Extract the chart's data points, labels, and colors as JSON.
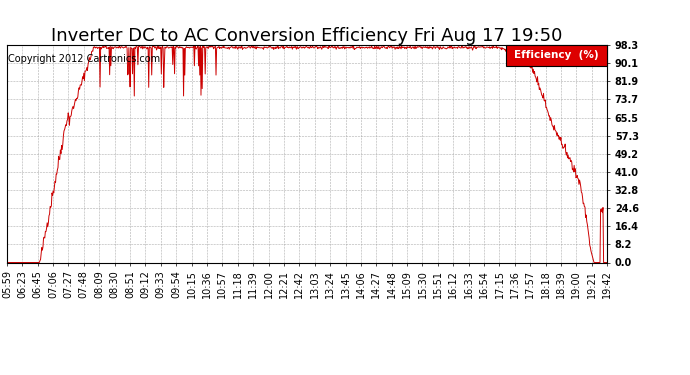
{
  "title": "Inverter DC to AC Conversion Efficiency Fri Aug 17 19:50",
  "copyright": "Copyright 2012 Cartronics.com",
  "legend_label": "Efficiency  (%)",
  "legend_bg": "#dd0000",
  "legend_text_color": "#ffffff",
  "line_color": "#cc0000",
  "bg_color": "#ffffff",
  "plot_bg_color": "#ffffff",
  "grid_color": "#999999",
  "yticks": [
    0.0,
    8.2,
    16.4,
    24.6,
    32.8,
    41.0,
    49.2,
    57.3,
    65.5,
    73.7,
    81.9,
    90.1,
    98.3
  ],
  "ylim": [
    0.0,
    98.3
  ],
  "xtick_labels": [
    "05:59",
    "06:23",
    "06:45",
    "07:06",
    "07:27",
    "07:48",
    "08:09",
    "08:30",
    "08:51",
    "09:12",
    "09:33",
    "09:54",
    "10:15",
    "10:36",
    "10:57",
    "11:18",
    "11:39",
    "12:00",
    "12:21",
    "12:42",
    "13:03",
    "13:24",
    "13:45",
    "14:06",
    "14:27",
    "14:48",
    "15:09",
    "15:30",
    "15:51",
    "16:12",
    "16:33",
    "16:54",
    "17:15",
    "17:36",
    "17:57",
    "18:18",
    "18:39",
    "19:00",
    "19:21",
    "19:42"
  ],
  "title_fontsize": 13,
  "axis_fontsize": 7,
  "copyright_fontsize": 7
}
